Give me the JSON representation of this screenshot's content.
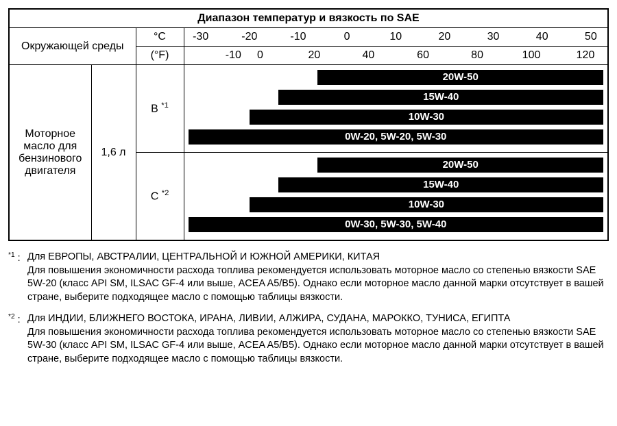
{
  "title": "Диапазон температур и вязкость по SAE",
  "row_head_env": "Окружающей среды",
  "row_head_oil": "Моторное масло для бензинового двигателя",
  "engine_vol": "1,6 л",
  "unit_c": "°C",
  "unit_f": "(°F)",
  "region_B": "В",
  "region_B_sup": "*1",
  "region_C": "С",
  "region_C_sup": "*2",
  "scale": {
    "c_min": -30,
    "c_max": 50,
    "c_ticks": [
      -30,
      -20,
      -10,
      0,
      10,
      20,
      30,
      40,
      50
    ],
    "f_ticks": [
      {
        "label": "-10",
        "c": -23.3
      },
      {
        "label": "0",
        "c": -17.8
      },
      {
        "label": "20",
        "c": -6.7
      },
      {
        "label": "40",
        "c": 4.4
      },
      {
        "label": "60",
        "c": 15.6
      },
      {
        "label": "80",
        "c": 26.7
      },
      {
        "label": "100",
        "c": 37.8
      },
      {
        "label": "120",
        "c": 48.9
      }
    ]
  },
  "bars_B": [
    {
      "label": "20W-50",
      "from": -6,
      "to": 52
    },
    {
      "label": "15W-40",
      "from": -14,
      "to": 52
    },
    {
      "label": "10W-30",
      "from": -20,
      "to": 52
    },
    {
      "label": "0W-20, 5W-20, 5W-30",
      "from": -32,
      "to": 52
    }
  ],
  "bars_C": [
    {
      "label": "20W-50",
      "from": -6,
      "to": 52
    },
    {
      "label": "15W-40",
      "from": -14,
      "to": 52
    },
    {
      "label": "10W-30",
      "from": -20,
      "to": 52
    },
    {
      "label": "0W-30, 5W-30, 5W-40",
      "from": -32,
      "to": 52
    }
  ],
  "fn1_mark": "*1 :",
  "fn1_l1": "Для ЕВРОПЫ, АВСТРАЛИИ, ЦЕНТРАЛЬНОЙ И ЮЖНОЙ АМЕРИКИ, КИТАЯ",
  "fn1_l2": "Для повышения экономичности расхода топлива рекомендуется использовать моторное масло со степенью вязкости SAE 5W-20 (класс API SM, ILSAC GF-4 или выше, ACEA A5/B5). Однако если моторное масло данной марки отсутствует в вашей стране, выберите подходящее масло с помощью таблицы вязкости.",
  "fn2_mark": "*2 :",
  "fn2_l1": "Для ИНДИИ, БЛИЖНЕГО ВОСТОКА, ИРАНА, ЛИВИИ, АЛЖИРА, СУДАНА, МАРОККО, ТУНИСА, ЕГИПТА",
  "fn2_l2": "Для повышения экономичности расхода топлива рекомендуется использовать моторное масло со степенью вязкости SAE 5W-30 (класс API SM, ILSAC GF-4 или выше, ACEA A5/B5). Однако если моторное масло данной марки отсутствует в вашей стране, выберите подходящее масло с помощью таблицы вязкости.",
  "colors": {
    "bar_bg": "#000000",
    "bar_text": "#ffffff"
  }
}
